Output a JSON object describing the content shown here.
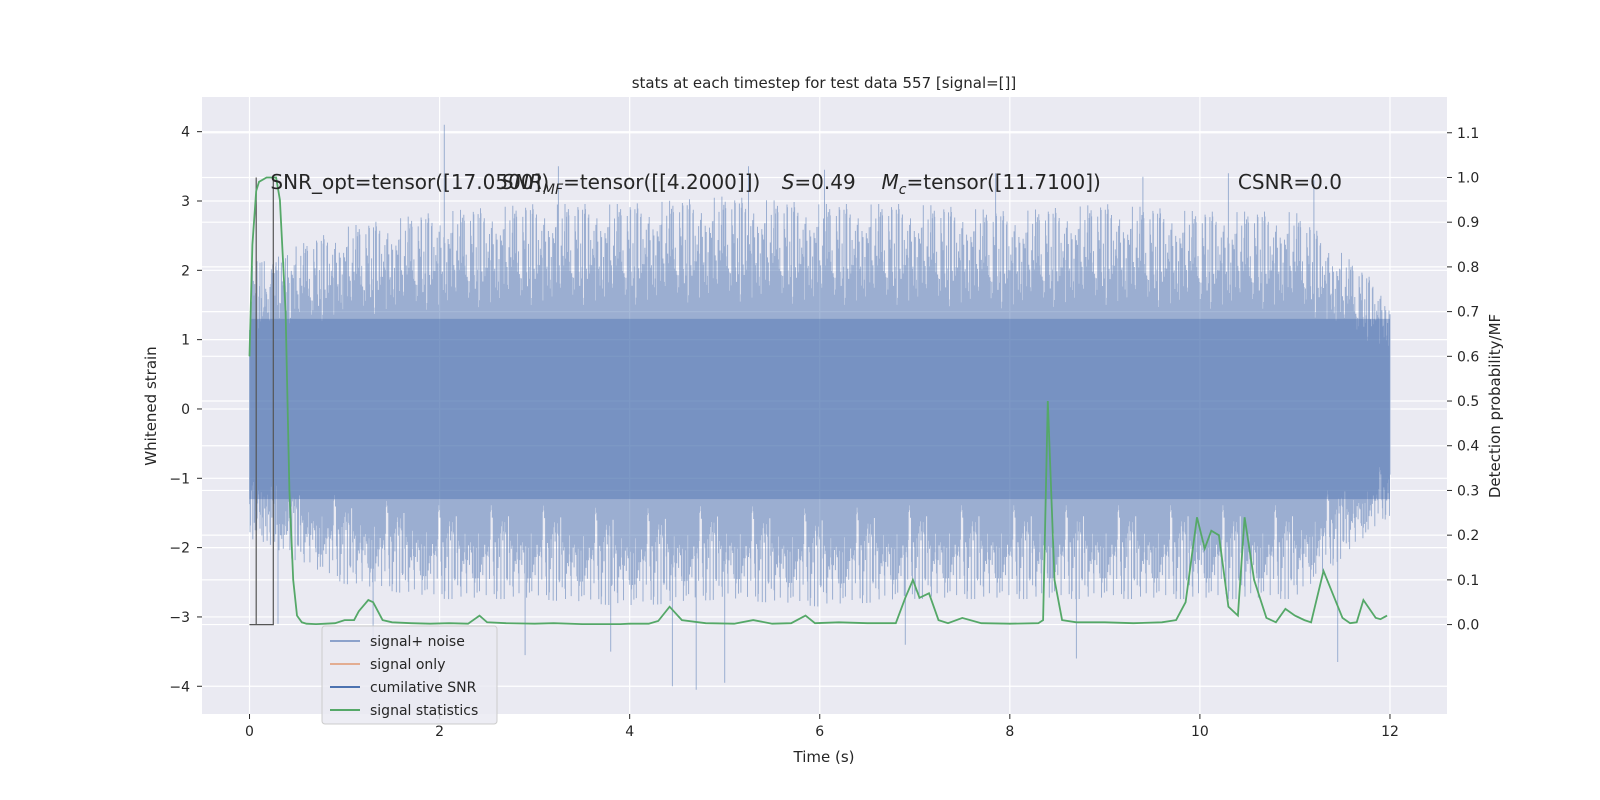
{
  "chart_data": {
    "type": "line",
    "title": "stats at each timestep for test data 557 [signal=[]]",
    "xlabel": "Time (s)",
    "ylabel_left": "Whitened strain",
    "ylabel_right": "Detection probability/MF",
    "xlim": [
      -0.5,
      12.6
    ],
    "ylim_left": [
      -4.4,
      4.5
    ],
    "ylim_right": [
      -0.2,
      1.18
    ],
    "x_ticks": [
      0,
      2,
      4,
      6,
      8,
      10,
      12
    ],
    "y_left_ticks": [
      -4,
      -3,
      -2,
      -1,
      0,
      1,
      2,
      3,
      4
    ],
    "y_right_ticks": [
      0.0,
      0.1,
      0.2,
      0.3,
      0.4,
      0.5,
      0.6,
      0.7,
      0.8,
      0.9,
      1.0,
      1.1
    ],
    "y_left_tick_labels": [
      "−4",
      "−3",
      "−2",
      "−1",
      "0",
      "1",
      "2",
      "3",
      "4"
    ],
    "y_right_tick_labels": [
      "0.0",
      "0.1",
      "0.2",
      "0.3",
      "0.4",
      "0.5",
      "0.6",
      "0.7",
      "0.8",
      "0.9",
      "1.0",
      "1.1"
    ],
    "grid": true,
    "legend_placement": "lower-left",
    "annotations": [
      {
        "text": "SNR_opt=tensor([17.0500])",
        "x": 0.22,
        "y_right": 0.99
      },
      {
        "text": "SNR_MF=tensor([[4.2000]])",
        "x": 2.65,
        "y_right": 0.99
      },
      {
        "text": "S=0.49",
        "x": 5.6,
        "y_right": 0.99
      },
      {
        "text": "M_c=tensor([11.7100])",
        "x": 6.65,
        "y_right": 0.99
      },
      {
        "text": "CSNR=0.0",
        "x": 10.4,
        "y_right": 0.99
      }
    ],
    "series": [
      {
        "name": "signal+ noise",
        "axis": "left",
        "color": "#4c72b0",
        "opacity": 0.5,
        "x_range": [
          0,
          12
        ],
        "core_band": [
          -1.3,
          1.3
        ],
        "envelope": [
          {
            "x": 0.0,
            "lo": -1.7,
            "hi": 1.9
          },
          {
            "x": 1.0,
            "lo": -2.3,
            "hi": 2.4
          },
          {
            "x": 2.0,
            "lo": -2.5,
            "hi": 2.6
          },
          {
            "x": 3.0,
            "lo": -2.5,
            "hi": 2.7
          },
          {
            "x": 4.0,
            "lo": -2.6,
            "hi": 2.7
          },
          {
            "x": 5.0,
            "lo": -2.5,
            "hi": 2.8
          },
          {
            "x": 6.0,
            "lo": -2.6,
            "hi": 2.7
          },
          {
            "x": 7.0,
            "lo": -2.5,
            "hi": 2.7
          },
          {
            "x": 8.0,
            "lo": -2.5,
            "hi": 2.6
          },
          {
            "x": 9.0,
            "lo": -2.5,
            "hi": 2.7
          },
          {
            "x": 10.0,
            "lo": -2.5,
            "hi": 2.6
          },
          {
            "x": 11.0,
            "lo": -2.5,
            "hi": 2.6
          },
          {
            "x": 12.0,
            "lo": -1.4,
            "hi": 1.5
          }
        ],
        "extremes": [
          {
            "x": 2.05,
            "y": 4.1
          },
          {
            "x": 4.45,
            "y": -4.0
          },
          {
            "x": 4.7,
            "y": -4.05
          },
          {
            "x": 5.0,
            "y": -3.95
          },
          {
            "x": 3.25,
            "y": 3.5
          },
          {
            "x": 8.7,
            "y": -3.6
          },
          {
            "x": 11.45,
            "y": -3.65
          },
          {
            "x": 7.85,
            "y": 3.4
          },
          {
            "x": 6.05,
            "y": 3.45
          },
          {
            "x": 0.3,
            "y": -3.1
          },
          {
            "x": 1.3,
            "y": -3.3
          },
          {
            "x": 2.9,
            "y": -3.55
          },
          {
            "x": 5.25,
            "y": 3.5
          },
          {
            "x": 9.4,
            "y": 3.35
          },
          {
            "x": 10.3,
            "y": 3.4
          },
          {
            "x": 11.2,
            "y": 3.3
          },
          {
            "x": 6.9,
            "y": -3.4
          },
          {
            "x": 3.8,
            "y": -3.5
          }
        ]
      },
      {
        "name": "signal only",
        "axis": "left",
        "color": "#dd8452",
        "x": [],
        "y": []
      },
      {
        "name": "cumilative SNR",
        "axis": "right",
        "color": "#4c72b0",
        "x": [
          0.0,
          0.07,
          0.07,
          0.07,
          0.25,
          0.25,
          0.25
        ],
        "y": [
          0.0,
          0.0,
          1.0,
          0.0,
          0.0,
          1.0,
          0.0
        ]
      },
      {
        "name": "signal statistics",
        "axis": "right",
        "color": "#55a868",
        "x": [
          0.0,
          0.03,
          0.07,
          0.1,
          0.18,
          0.28,
          0.32,
          0.38,
          0.42,
          0.46,
          0.5,
          0.55,
          0.6,
          0.7,
          0.8,
          0.9,
          1.0,
          1.1,
          1.15,
          1.25,
          1.3,
          1.4,
          1.5,
          1.7,
          1.9,
          2.1,
          2.3,
          2.42,
          2.5,
          2.7,
          3.0,
          3.2,
          3.5,
          3.9,
          4.0,
          4.2,
          4.3,
          4.42,
          4.55,
          4.8,
          5.1,
          5.3,
          5.5,
          5.7,
          5.85,
          5.95,
          6.2,
          6.5,
          6.8,
          6.9,
          6.98,
          7.05,
          7.15,
          7.25,
          7.35,
          7.5,
          7.7,
          8.0,
          8.3,
          8.35,
          8.4,
          8.47,
          8.55,
          8.7,
          9.0,
          9.3,
          9.6,
          9.75,
          9.85,
          9.97,
          10.05,
          10.12,
          10.2,
          10.3,
          10.4,
          10.47,
          10.57,
          10.7,
          10.8,
          10.9,
          11.0,
          11.1,
          11.17,
          11.3,
          11.5,
          11.58,
          11.65,
          11.72,
          11.85,
          11.9,
          11.97
        ],
        "y": [
          0.6,
          0.85,
          0.97,
          0.99,
          1.0,
          1.0,
          0.95,
          0.7,
          0.3,
          0.1,
          0.02,
          0.005,
          0.002,
          0.001,
          0.002,
          0.003,
          0.01,
          0.01,
          0.03,
          0.055,
          0.05,
          0.01,
          0.005,
          0.003,
          0.002,
          0.003,
          0.002,
          0.02,
          0.005,
          0.003,
          0.002,
          0.003,
          0.001,
          0.001,
          0.002,
          0.002,
          0.008,
          0.04,
          0.01,
          0.003,
          0.002,
          0.01,
          0.002,
          0.003,
          0.02,
          0.003,
          0.005,
          0.003,
          0.003,
          0.06,
          0.1,
          0.06,
          0.07,
          0.01,
          0.003,
          0.015,
          0.003,
          0.002,
          0.003,
          0.01,
          0.5,
          0.1,
          0.01,
          0.005,
          0.005,
          0.003,
          0.005,
          0.01,
          0.05,
          0.24,
          0.17,
          0.21,
          0.2,
          0.04,
          0.02,
          0.24,
          0.1,
          0.015,
          0.005,
          0.035,
          0.02,
          0.01,
          0.005,
          0.12,
          0.015,
          0.003,
          0.005,
          0.055,
          0.015,
          0.012,
          0.02
        ]
      },
      {
        "name": "_hidden_legend_text",
        "axis": "left",
        "x": [],
        "y": []
      }
    ],
    "legend_entries": [
      {
        "label": "signal+ noise",
        "color": "#4c72b0"
      },
      {
        "label": "signal only",
        "color": "#dd8452"
      },
      {
        "label": "cumilative SNR",
        "color": "#4c72b0"
      },
      {
        "label": "signal statistics",
        "color": "#55a868"
      }
    ],
    "colors": {
      "plot_background": "#eaeaf2",
      "grid": "#ffffff",
      "noise": "#4c72b0",
      "signal_only": "#dd8452",
      "cumulative_snr": "#4c72b0",
      "cumulative_snr_line": "#555555",
      "statistics": "#55a868"
    }
  }
}
